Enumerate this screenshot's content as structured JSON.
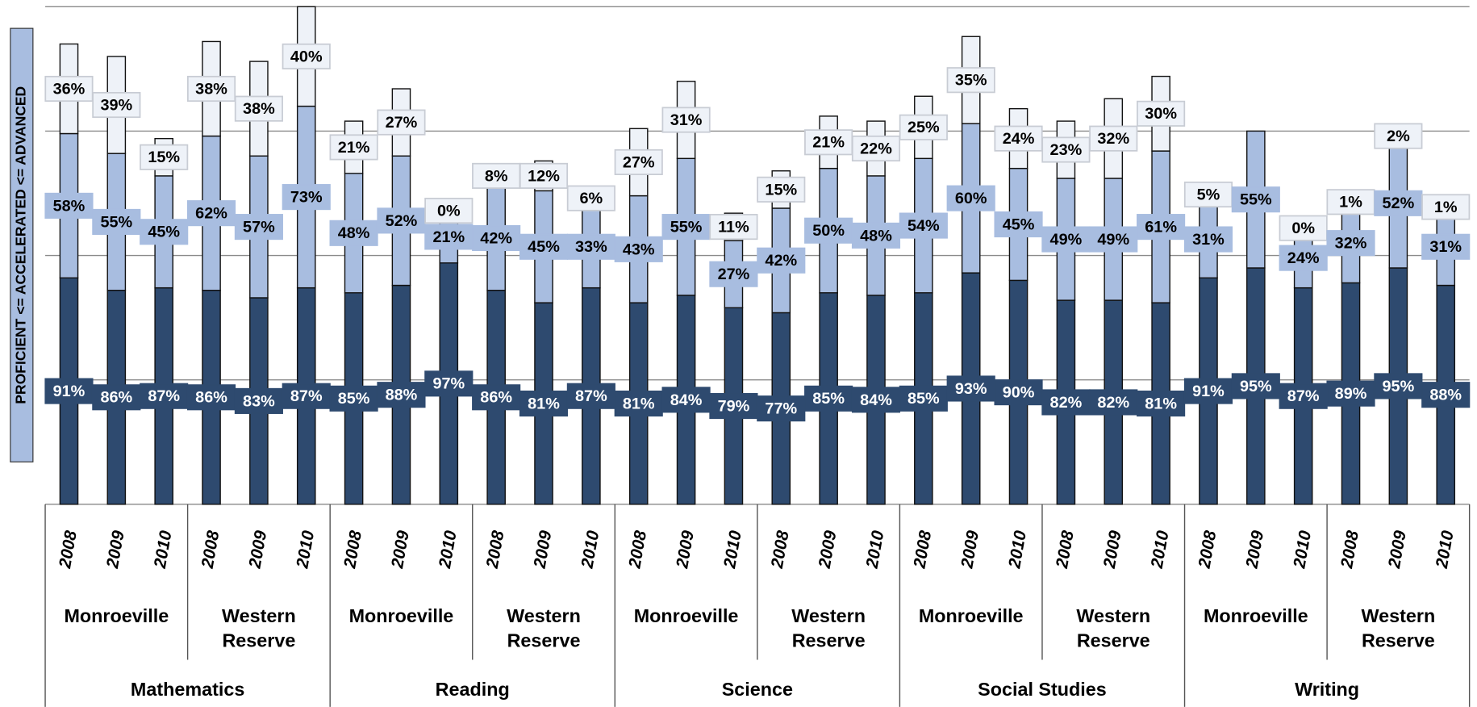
{
  "chart_data": {
    "type": "bar",
    "stacked": true,
    "y_label": "PROFICIENT <= ACCELERATED <= ADVANCED",
    "ylim": [
      0,
      200
    ],
    "yticks": [
      0,
      50,
      100,
      150,
      200
    ],
    "grid": true,
    "categories": [
      "2008",
      "2009",
      "2010",
      "2008",
      "2009",
      "2010",
      "2008",
      "2009",
      "2010",
      "2008",
      "2009",
      "2010",
      "2008",
      "2009",
      "2010",
      "2008",
      "2009",
      "2010",
      "2008",
      "2009",
      "2010",
      "2008",
      "2009",
      "2010",
      "2008",
      "2009",
      "2010",
      "2008",
      "2009",
      "2010"
    ],
    "districts": [
      "Monroeville",
      "Western Reserve",
      "Monroeville",
      "Western Reserve",
      "Monroeville",
      "Western Reserve",
      "Monroeville",
      "Western Reserve",
      "Monroeville",
      "Western Reserve"
    ],
    "subjects": [
      "Mathematics",
      "Reading",
      "Science",
      "Social Studies",
      "Writing"
    ],
    "series": [
      {
        "color": "#2e4a6f",
        "values": [
          91,
          86,
          87,
          86,
          83,
          87,
          85,
          88,
          97,
          86,
          81,
          87,
          81,
          84,
          79,
          77,
          85,
          84,
          85,
          93,
          90,
          82,
          82,
          81,
          91,
          95,
          87,
          89,
          95,
          88
        ],
        "value_labels": [
          "91%",
          "86%",
          "87%",
          "86%",
          "83%",
          "87%",
          "85%",
          "88%",
          "97%",
          "86%",
          "81%",
          "87%",
          "81%",
          "84%",
          "79%",
          "77%",
          "85%",
          "84%",
          "85%",
          "93%",
          "90%",
          "82%",
          "82%",
          "81%",
          "91%",
          "95%",
          "87%",
          "89%",
          "95%",
          "88%"
        ]
      },
      {
        "color": "#a8bde0",
        "values": [
          58,
          55,
          45,
          62,
          57,
          73,
          48,
          52,
          21,
          42,
          45,
          33,
          43,
          55,
          27,
          42,
          50,
          48,
          54,
          60,
          45,
          49,
          49,
          61,
          31,
          55,
          24,
          32,
          52,
          31
        ],
        "value_labels": [
          "58%",
          "55%",
          "45%",
          "62%",
          "57%",
          "73%",
          "48%",
          "52%",
          "21%",
          "42%",
          "45%",
          "33%",
          "43%",
          "55%",
          "27%",
          "42%",
          "50%",
          "48%",
          "54%",
          "60%",
          "45%",
          "49%",
          "49%",
          "61%",
          "31%",
          "55%",
          "24%",
          "32%",
          "52%",
          "31%"
        ]
      },
      {
        "color": "#eef2f8",
        "values": [
          36,
          39,
          15,
          38,
          38,
          40,
          21,
          27,
          0,
          8,
          12,
          6,
          27,
          31,
          11,
          15,
          21,
          22,
          25,
          35,
          24,
          23,
          32,
          30,
          5,
          null,
          0,
          1,
          2,
          1
        ],
        "value_labels": [
          "36%",
          "39%",
          "15%",
          "38%",
          "38%",
          "40%",
          "21%",
          "27%",
          "0%",
          "8%",
          "12%",
          "6%",
          "27%",
          "31%",
          "11%",
          "15%",
          "21%",
          "22%",
          "25%",
          "35%",
          "24%",
          "23%",
          "32%",
          "30%",
          "5%",
          null,
          "0%",
          "1%",
          "2%",
          "1%"
        ]
      }
    ]
  }
}
